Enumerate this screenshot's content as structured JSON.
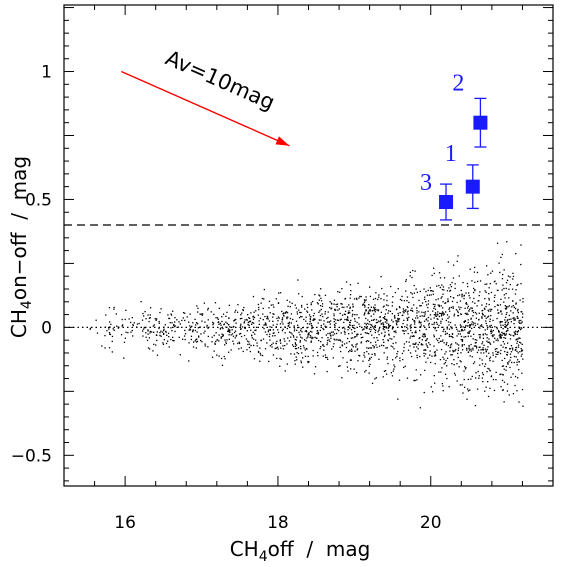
{
  "chart_data": {
    "type": "scatter",
    "title": "",
    "xlabel": {
      "main": "CH",
      "sub": "4",
      "rest": "off  /  mag"
    },
    "ylabel": {
      "main": "CH",
      "sub": "4",
      "rest": "on−off  /  mag"
    },
    "xlim": [
      15.2,
      21.6
    ],
    "ylim": [
      -0.62,
      1.26
    ],
    "xticks_major": [
      16,
      18,
      20
    ],
    "yticks_major": [
      -0.5,
      0,
      0.5,
      1
    ],
    "xtick_labels": [
      "16",
      "18",
      "20"
    ],
    "ytick_labels": [
      "−0.5",
      "0",
      "0.5",
      "1"
    ],
    "threshold_line": {
      "y": 0.4,
      "style": "dashed"
    },
    "zero_line": {
      "y": 0,
      "style": "dotted"
    },
    "field_stars": {
      "description_style": "small black dots",
      "x_range": [
        15.5,
        21.2
      ],
      "y_center": 0.0,
      "count": 2200,
      "color": "#000000"
    },
    "candidates": [
      {
        "id": "1",
        "x": 20.55,
        "y": 0.55,
        "yerr": 0.085
      },
      {
        "id": "2",
        "x": 20.65,
        "y": 0.8,
        "yerr": 0.095
      },
      {
        "id": "3",
        "x": 20.2,
        "y": 0.49,
        "yerr": 0.07
      }
    ],
    "candidate_color": "#1a1aff",
    "extinction_vector": {
      "label": "Av=10mag",
      "from": [
        15.95,
        1.0
      ],
      "to": [
        18.15,
        0.71
      ],
      "color": "#ff0000"
    }
  }
}
